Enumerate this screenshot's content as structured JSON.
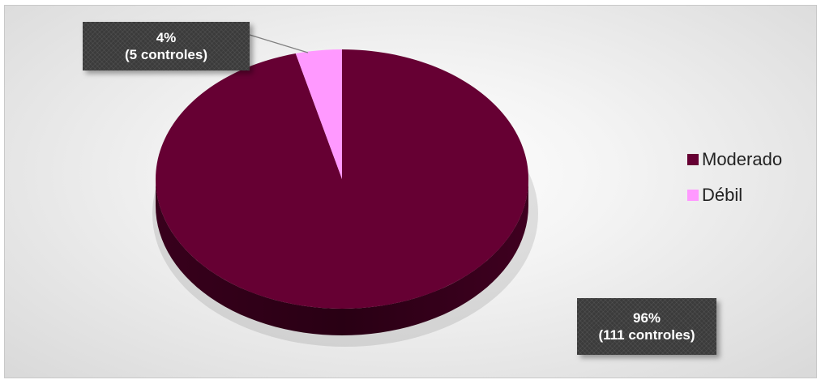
{
  "chart_data": {
    "type": "pie",
    "style": "3d",
    "categories": [
      "Moderado",
      "Débil"
    ],
    "values": [
      96,
      4
    ],
    "counts": [
      111,
      5
    ],
    "colors": [
      "#660033",
      "#ff99ff"
    ],
    "data_labels": [
      {
        "percent": "96%",
        "detail": "(111 controles)"
      },
      {
        "percent": "4%",
        "detail": "(5 controles)"
      }
    ],
    "legend": {
      "position": "right",
      "entries": [
        "Moderado",
        "Débil"
      ]
    }
  }
}
